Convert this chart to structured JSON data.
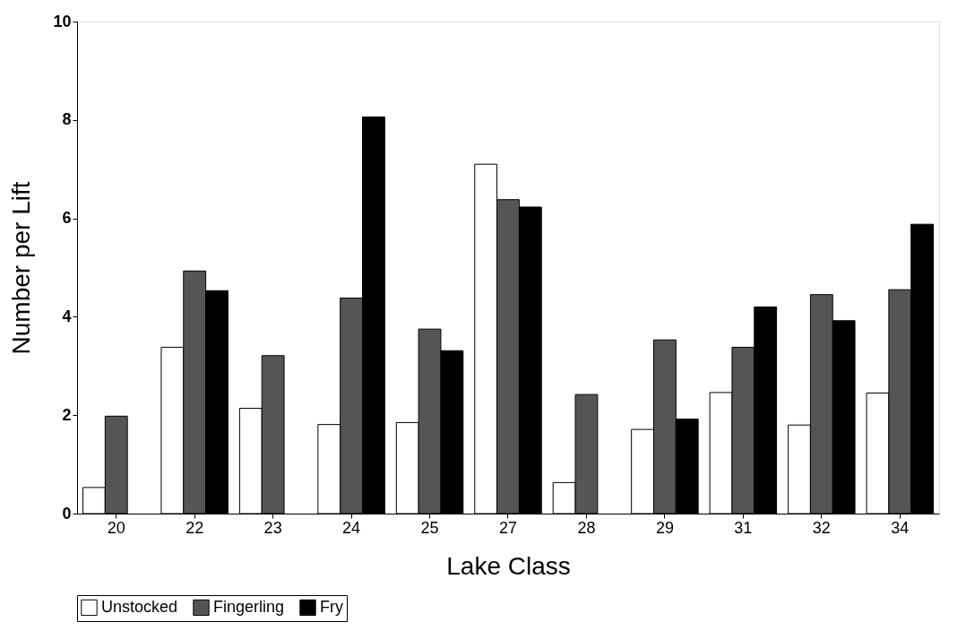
{
  "chart_data": {
    "type": "bar",
    "xlabel": "Lake Class",
    "ylabel": "Number per Lift",
    "categories": [
      "20",
      "22",
      "23",
      "24",
      "25",
      "27",
      "28",
      "29",
      "31",
      "32",
      "34"
    ],
    "series": [
      {
        "name": "Unstocked",
        "color": "#ffffff",
        "values": [
          0.53,
          3.38,
          2.14,
          1.81,
          1.85,
          7.1,
          0.63,
          1.71,
          2.46,
          1.8,
          2.45
        ]
      },
      {
        "name": "Fingerling",
        "color": "#555555",
        "values": [
          1.98,
          4.93,
          3.21,
          4.38,
          3.75,
          6.38,
          2.42,
          3.53,
          3.38,
          4.45,
          4.55
        ]
      },
      {
        "name": "Fry",
        "color": "#000000",
        "values": [
          null,
          4.53,
          null,
          8.06,
          3.31,
          6.23,
          null,
          1.92,
          4.2,
          3.92,
          5.88
        ]
      }
    ],
    "ylim": [
      0,
      10
    ],
    "yticks": [
      0,
      2,
      4,
      6,
      8,
      10
    ],
    "grid": false,
    "legend": "bottom"
  }
}
